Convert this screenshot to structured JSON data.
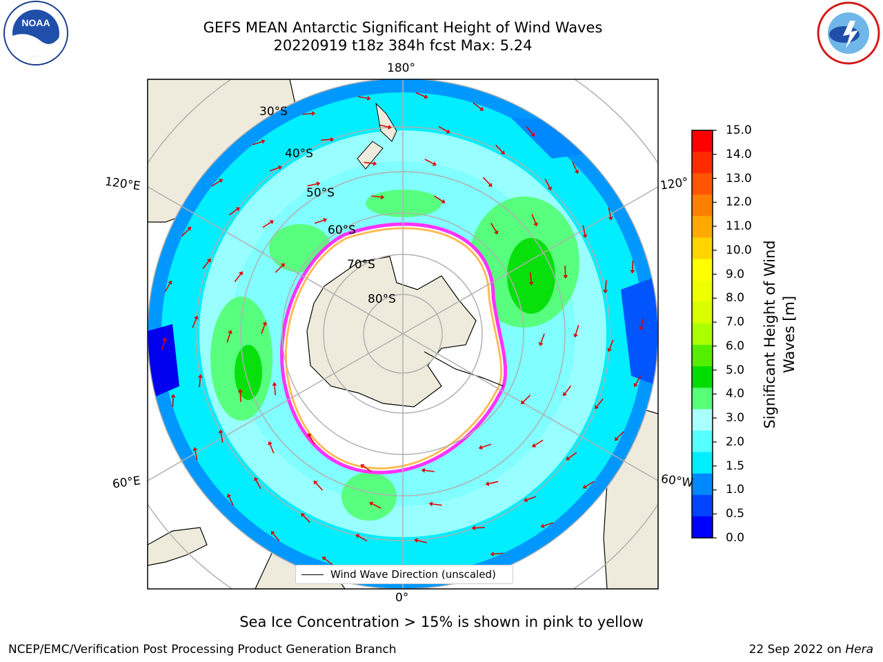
{
  "title_line1": "GEFS MEAN Antarctic Significant Height of Wind Waves",
  "title_line2": "20220919 t18z 384h fcst   Max: 5.24",
  "logos": {
    "left": "NOAA",
    "right": "NATIONAL WEATHER SERVICE"
  },
  "map": {
    "lon_labels": {
      "top": "180°",
      "bottom": "0°",
      "upper_left": "120°E",
      "lower_left": "60°E",
      "upper_right": "120°",
      "lower_right": "60°W"
    },
    "lat_labels": [
      "30°S",
      "40°S",
      "50°S",
      "60°S",
      "70°S",
      "80°S"
    ],
    "legend_label": "Wind Wave Direction (unscaled)"
  },
  "colorbar": {
    "title_line1": "Significant Height of Wind",
    "title_line2": "Waves [m]",
    "ticks": [
      "15.0",
      "14.0",
      "13.0",
      "12.0",
      "11.0",
      "10.0",
      "9.0",
      "8.0",
      "7.0",
      "6.0",
      "5.0",
      "4.0",
      "3.0",
      "2.0",
      "1.5",
      "1.0",
      "0.5",
      "0.0"
    ],
    "colors": [
      "#ff0000",
      "#ff2a00",
      "#ff5500",
      "#ff8000",
      "#ffaa00",
      "#ffd400",
      "#ffff00",
      "#eeff00",
      "#d8ff00",
      "#aaff00",
      "#55ee00",
      "#00dd00",
      "#55ff77",
      "#aaffff",
      "#55ffff",
      "#00eeff",
      "#0088ff",
      "#0044ff",
      "#0000ff"
    ]
  },
  "note": "Sea Ice Concentration > 15% is shown in pink to yellow",
  "credit": "NCEP/EMC/Verification Post Processing Product Generation Branch",
  "date": "22 Sep 2022 on ",
  "system": "Hera"
}
